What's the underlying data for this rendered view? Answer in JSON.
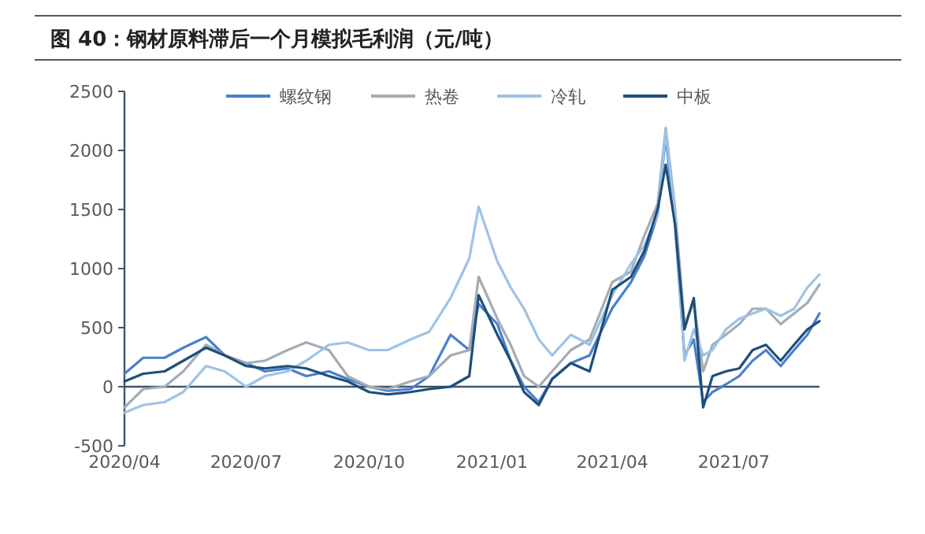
{
  "chart_data": {
    "type": "line",
    "title": "图 40：钢材原料滞后一个月模拟毛利润（元/吨）",
    "x": [
      "2020-04-01",
      "2020-04-15",
      "2020-05-01",
      "2020-05-15",
      "2020-06-01",
      "2020-06-15",
      "2020-07-01",
      "2020-07-15",
      "2020-08-01",
      "2020-08-15",
      "2020-09-01",
      "2020-09-15",
      "2020-10-01",
      "2020-10-15",
      "2020-11-01",
      "2020-11-15",
      "2020-12-01",
      "2020-12-15",
      "2020-12-22",
      "2021-01-05",
      "2021-01-15",
      "2021-01-25",
      "2021-02-05",
      "2021-02-15",
      "2021-03-01",
      "2021-03-15",
      "2021-04-01",
      "2021-04-15",
      "2021-04-25",
      "2021-05-05",
      "2021-05-11",
      "2021-05-18",
      "2021-05-25",
      "2021-06-01",
      "2021-06-08",
      "2021-06-15",
      "2021-06-25",
      "2021-07-05",
      "2021-07-15",
      "2021-07-25",
      "2021-08-05",
      "2021-08-15",
      "2021-08-25",
      "2021-09-03"
    ],
    "xlim": [
      "2020-04-01",
      "2021-09-03"
    ],
    "xticks": [
      {
        "value": "2020-04-01",
        "label": "2020/04"
      },
      {
        "value": "2020-07-01",
        "label": "2020/07"
      },
      {
        "value": "2020-10-01",
        "label": "2020/10"
      },
      {
        "value": "2021-01-01",
        "label": "2021/01"
      },
      {
        "value": "2021-04-01",
        "label": "2021/04"
      },
      {
        "value": "2021-07-01",
        "label": "2021/07"
      }
    ],
    "ylim": [
      -500,
      2500
    ],
    "yticks": [
      -500,
      0,
      500,
      1000,
      1500,
      2000,
      2500
    ],
    "legend": "top",
    "series": [
      {
        "name": "螺纹钢",
        "color": "#4a7fcf",
        "values": [
          110,
          245,
          245,
          330,
          420,
          265,
          200,
          130,
          155,
          90,
          130,
          65,
          0,
          -35,
          -20,
          90,
          440,
          310,
          700,
          530,
          220,
          0,
          -130,
          65,
          200,
          265,
          665,
          885,
          1105,
          1460,
          2125,
          1370,
          265,
          400,
          -130,
          -45,
          20,
          90,
          220,
          310,
          175,
          310,
          440,
          620
        ]
      },
      {
        "name": "热卷",
        "color": "#a3acb6",
        "values": [
          -175,
          -20,
          0,
          130,
          355,
          265,
          200,
          220,
          310,
          375,
          310,
          90,
          0,
          -20,
          45,
          90,
          265,
          310,
          930,
          575,
          355,
          90,
          0,
          130,
          310,
          400,
          885,
          975,
          1280,
          1550,
          2190,
          1505,
          530,
          710,
          130,
          355,
          440,
          530,
          660,
          660,
          530,
          620,
          710,
          865
        ]
      },
      {
        "name": "冷轧",
        "color": "#9dc3e6",
        "values": [
          -220,
          -155,
          -130,
          -45,
          175,
          130,
          0,
          90,
          130,
          220,
          355,
          375,
          310,
          310,
          400,
          465,
          750,
          1085,
          1525,
          1060,
          840,
          660,
          400,
          265,
          440,
          355,
          775,
          1040,
          1195,
          1460,
          2170,
          1460,
          220,
          485,
          265,
          310,
          485,
          575,
          620,
          660,
          600,
          660,
          840,
          950
        ]
      },
      {
        "name": "中板",
        "color": "#1f4e79",
        "values": [
          45,
          110,
          130,
          220,
          330,
          265,
          175,
          155,
          175,
          155,
          90,
          45,
          -45,
          -65,
          -45,
          -20,
          0,
          90,
          775,
          440,
          220,
          -45,
          -155,
          65,
          200,
          130,
          820,
          930,
          1150,
          1505,
          1880,
          1370,
          485,
          750,
          -175,
          90,
          130,
          155,
          310,
          355,
          220,
          355,
          485,
          555
        ]
      }
    ]
  }
}
